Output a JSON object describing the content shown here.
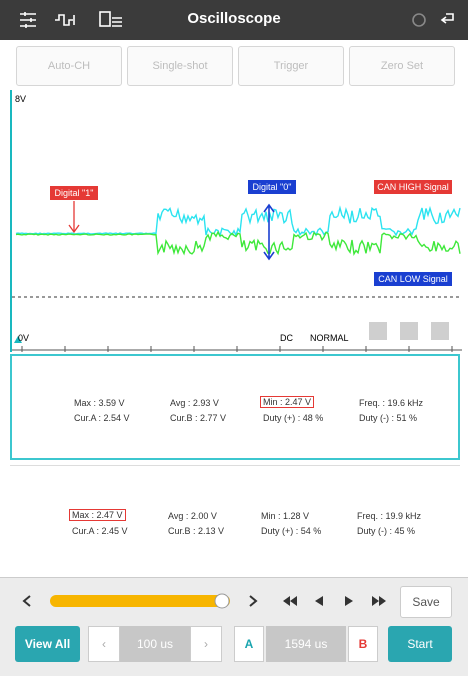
{
  "toolbar": {
    "title": "Oscilloscope"
  },
  "buttons": [
    "Auto-CH",
    "Single-shot",
    "Trigger",
    "Zero Set"
  ],
  "scope": {
    "top_label": "8V",
    "bottom_label": "0V",
    "digital_1": "Digital \"1\"",
    "digital_0": "Digital \"0\"",
    "can_high": "CAN HIGH Signal",
    "can_low": "CAN LOW Signal",
    "coupling": "DC",
    "mode": "NORMAL"
  },
  "panels": [
    {
      "row1": [
        "Max : 3.59 V",
        "Avg : 2.93 V",
        "Min : 2.47 V",
        "Freq. : 19.6 kHz"
      ],
      "row2": [
        "Cur.A : 2.54 V",
        "Cur.B : 2.77 V",
        "Duty (+) : 48 %",
        "Duty (-) : 51 %"
      ]
    },
    {
      "row1": [
        "Max : 2.47 V",
        "Avg : 2.00 V",
        "Min : 1.28 V",
        "Freq. : 19.9 kHz"
      ],
      "row2": [
        "Cur.A : 2.45 V",
        "Cur.B : 2.13 V",
        "Duty (+) : 54 %",
        "Duty (-) : 45 %"
      ]
    }
  ],
  "playback": {
    "save": "Save"
  },
  "bottom": {
    "view_all": "View All",
    "time_div": "100 us",
    "cursor_a": "A",
    "cursor_span": "1594 us",
    "cursor_b": "B",
    "start": "Start"
  }
}
